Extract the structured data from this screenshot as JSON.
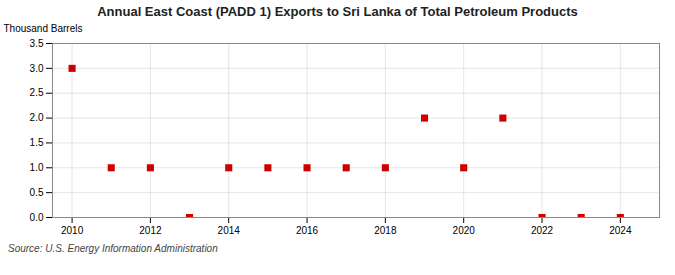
{
  "chart_data": {
    "type": "scatter",
    "title": "Annual East Coast (PADD 1) Exports to Sri Lanka of Total Petroleum Products",
    "ylabel": "Thousand Barrels",
    "annotations": [
      "Source: U.S. Energy Information Administration"
    ],
    "x": [
      2010,
      2011,
      2012,
      2013,
      2014,
      2015,
      2016,
      2017,
      2018,
      2019,
      2020,
      2021,
      2022,
      2023,
      2024
    ],
    "values": [
      3.0,
      1.0,
      1.0,
      0.0,
      1.0,
      1.0,
      1.0,
      1.0,
      1.0,
      2.0,
      1.0,
      2.0,
      0.0,
      0.0,
      0.0
    ],
    "color": "#cc0000",
    "marker": "square",
    "xlim": [
      2009.5,
      2025.0
    ],
    "xticks": [
      2010,
      2012,
      2014,
      2016,
      2018,
      2020,
      2022,
      2024
    ],
    "ylim": [
      0.0,
      3.5
    ],
    "yticks": [
      {
        "value": 0,
        "label": "0.0"
      },
      0.5,
      {
        "value": 1,
        "label": "1.0"
      },
      1.5,
      {
        "value": 2,
        "label": "2.0"
      },
      2.5,
      {
        "value": 3,
        "label": "3.0"
      },
      3.5
    ],
    "grid": true
  }
}
